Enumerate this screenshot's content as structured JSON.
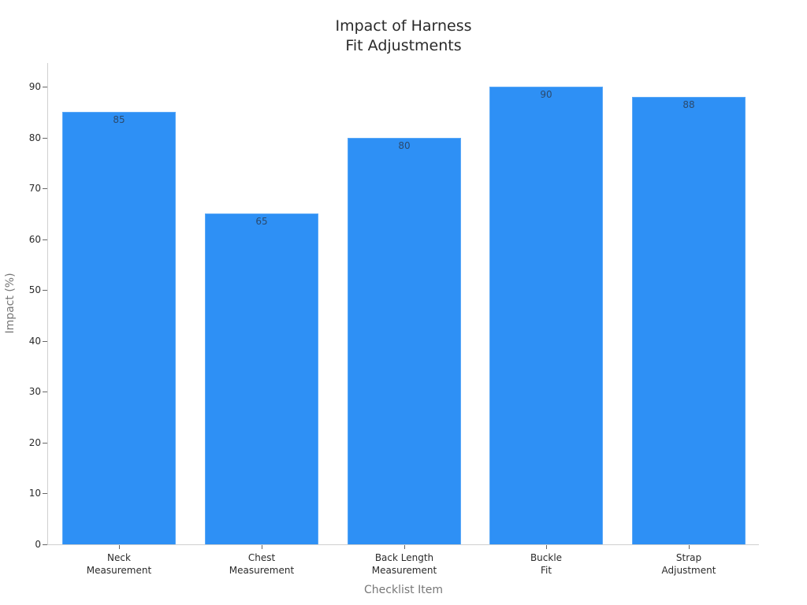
{
  "chart_data": {
    "type": "bar",
    "title": "Impact of Harness Fit Adjustments",
    "title_lines": [
      "Impact of Harness",
      "Fit Adjustments"
    ],
    "xlabel": "Checklist Item",
    "ylabel": "Impact (%)",
    "categories": [
      "Neck Measurement",
      "Chest Measurement",
      "Back Length Measurement",
      "Buckle Fit",
      "Strap Adjustment"
    ],
    "category_lines": [
      [
        "Neck",
        "Measurement"
      ],
      [
        "Chest",
        "Measurement"
      ],
      [
        "Back Length",
        "Measurement"
      ],
      [
        "Buckle",
        "Fit"
      ],
      [
        "Strap",
        "Adjustment"
      ]
    ],
    "values": [
      85,
      65,
      80,
      90,
      88
    ],
    "data_labels": [
      "85",
      "65",
      "80",
      "90",
      "88"
    ],
    "ylim": [
      0,
      94
    ],
    "yticks": [
      0,
      10,
      20,
      30,
      40,
      50,
      60,
      70,
      80,
      90
    ],
    "grid": false,
    "legend": null,
    "bar_color": "#2e90f5"
  }
}
